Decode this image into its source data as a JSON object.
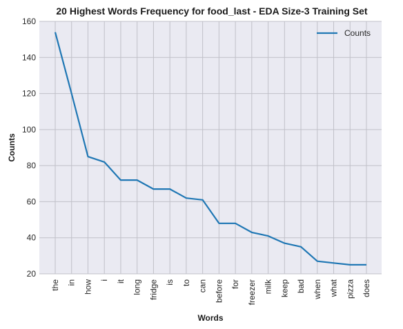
{
  "chart_data": {
    "type": "line",
    "title": "20 Highest Words Frequency for food_last - EDA Size-3 Training Set",
    "xlabel": "Words",
    "ylabel": "Counts",
    "categories": [
      "the",
      "in",
      "how",
      "i",
      "it",
      "long",
      "fridge",
      "is",
      "to",
      "can",
      "before",
      "for",
      "freezer",
      "milk",
      "keep",
      "bad",
      "when",
      "what",
      "pizza",
      "does"
    ],
    "series": [
      {
        "name": "Counts",
        "values": [
          154,
          120,
          85,
          82,
          72,
          72,
          67,
          67,
          62,
          61,
          48,
          48,
          43,
          41,
          37,
          35,
          27,
          26,
          25,
          25
        ]
      }
    ],
    "ylim": [
      20,
      160
    ],
    "yticks": [
      20,
      40,
      60,
      80,
      100,
      120,
      140,
      160
    ],
    "grid": true,
    "legend_position": "top-right",
    "colors": {
      "line": "#1f77b4",
      "plot_bg": "#eaeaf2",
      "grid": "#c0c0c8"
    }
  }
}
